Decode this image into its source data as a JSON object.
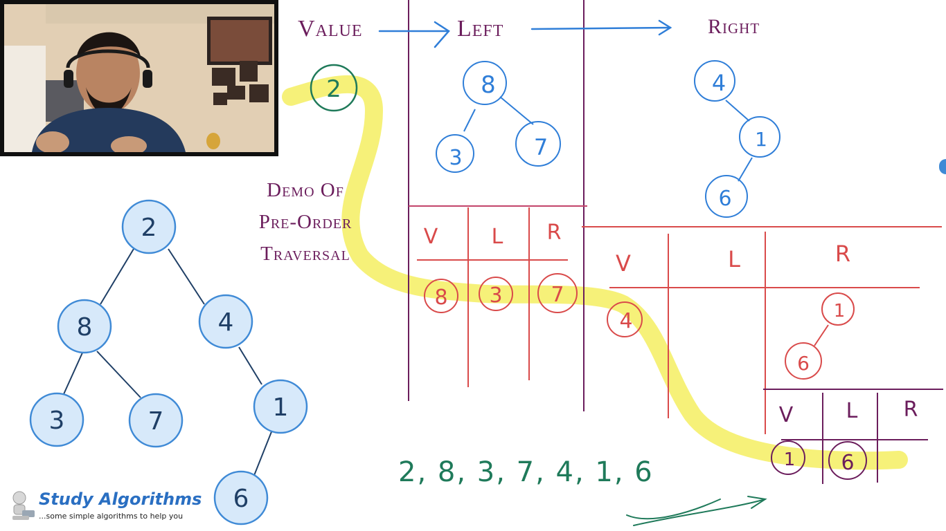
{
  "header_labels": {
    "value": "Value",
    "left": "Left",
    "right": "Right"
  },
  "demo_title": [
    "Demo Of",
    "Pre-Order",
    "Traversal"
  ],
  "main_tree": {
    "nodes": [
      {
        "id": "n2",
        "label": "2"
      },
      {
        "id": "n8",
        "label": "8"
      },
      {
        "id": "n4",
        "label": "4"
      },
      {
        "id": "n3",
        "label": "3"
      },
      {
        "id": "n7",
        "label": "7"
      },
      {
        "id": "n1",
        "label": "1"
      },
      {
        "id": "n6",
        "label": "6"
      }
    ]
  },
  "root_value": "2",
  "left_subtree": [
    "8",
    "3",
    "7"
  ],
  "right_subtree": [
    "4",
    "1",
    "6"
  ],
  "table1": {
    "headers": [
      "V",
      "L",
      "R"
    ],
    "values": [
      "8",
      "3",
      "7"
    ]
  },
  "table2": {
    "headers": [
      "V",
      "L",
      "R"
    ],
    "value": "4",
    "right_subtree": [
      "1",
      "6"
    ]
  },
  "table3": {
    "headers": [
      "V",
      "L",
      "R"
    ],
    "values": [
      "1",
      "6"
    ]
  },
  "result_sequence": "2, 8, 3, 7, 4, 1, 6",
  "branding": {
    "name": "Study Algorithms",
    "tagline": "...some simple algorithms to help you"
  },
  "colors": {
    "blue": "#2f7ed8",
    "purple": "#6b1d5c",
    "red": "#d94a4a",
    "green": "#1f7a5a",
    "highlight": "#f5f06a"
  }
}
